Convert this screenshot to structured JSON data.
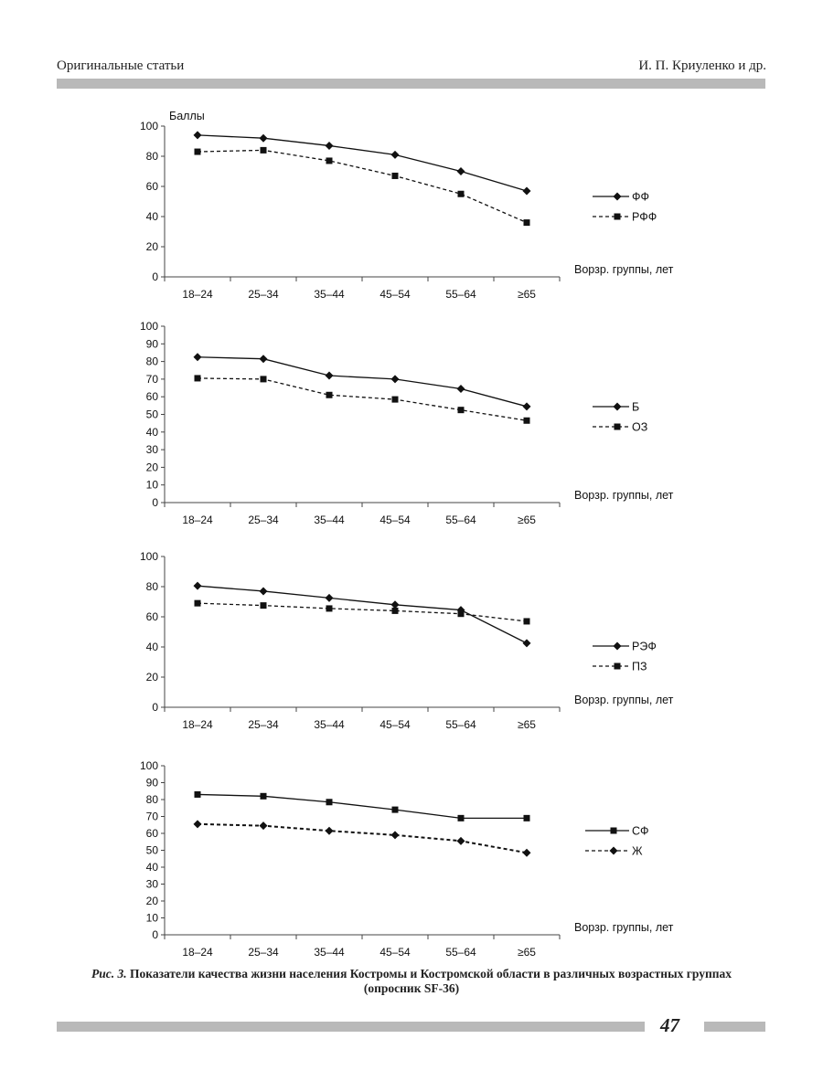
{
  "header": {
    "left": "Оригинальные статьи",
    "right": "И. П. Криуленко и др."
  },
  "chart_data": [
    {
      "type": "line",
      "categories": [
        "18–24",
        "25–34",
        "35–44",
        "45–54",
        "55–64",
        "≥65"
      ],
      "ylabel": "Баллы",
      "xlabel": "Ворзр. группы, лет",
      "ylim": [
        0,
        100
      ],
      "yticks": [
        0,
        20,
        40,
        60,
        80,
        100
      ],
      "legend_position": "right",
      "series": [
        {
          "name": "ФФ",
          "values": [
            94,
            92,
            87,
            81,
            70,
            57
          ],
          "marker": "diamond",
          "style": "solid"
        },
        {
          "name": "РФФ",
          "values": [
            83,
            84,
            77,
            67,
            55,
            36
          ],
          "marker": "square",
          "style": "dashed"
        }
      ]
    },
    {
      "type": "line",
      "categories": [
        "18–24",
        "25–34",
        "35–44",
        "45–54",
        "55–64",
        "≥65"
      ],
      "ylabel": "",
      "xlabel": "Ворзр. группы, лет",
      "ylim": [
        0,
        100
      ],
      "yticks": [
        0,
        10,
        20,
        30,
        40,
        50,
        60,
        70,
        80,
        90,
        100
      ],
      "legend_position": "right",
      "series": [
        {
          "name": "Б",
          "values": [
            82.5,
            81.5,
            72,
            70,
            64.5,
            54.5
          ],
          "marker": "diamond",
          "style": "solid"
        },
        {
          "name": "ОЗ",
          "values": [
            70.5,
            70,
            61,
            58.5,
            52.5,
            46.5
          ],
          "marker": "square",
          "style": "dashed"
        }
      ]
    },
    {
      "type": "line",
      "categories": [
        "18–24",
        "25–34",
        "35–44",
        "45–54",
        "55–64",
        "≥65"
      ],
      "ylabel": "",
      "xlabel": "Ворзр. группы, лет",
      "ylim": [
        0,
        100
      ],
      "yticks": [
        0,
        20,
        40,
        60,
        80,
        100
      ],
      "legend_position": "right",
      "series": [
        {
          "name": "РЭФ",
          "values": [
            80.5,
            77,
            72.5,
            68,
            64.5,
            42.5
          ],
          "marker": "diamond",
          "style": "solid"
        },
        {
          "name": "ПЗ",
          "values": [
            69,
            67.5,
            65.5,
            64,
            62,
            57
          ],
          "marker": "square",
          "style": "dashed"
        }
      ]
    },
    {
      "type": "line",
      "categories": [
        "18–24",
        "25–34",
        "35–44",
        "45–54",
        "55–64",
        "≥65"
      ],
      "ylabel": "",
      "xlabel": "Ворзр. группы, лет",
      "ylim": [
        0,
        100
      ],
      "yticks": [
        0,
        10,
        20,
        30,
        40,
        50,
        60,
        70,
        80,
        90,
        100
      ],
      "legend_position": "right",
      "series": [
        {
          "name": "СФ",
          "values": [
            83,
            82,
            78.5,
            74,
            69,
            69
          ],
          "marker": "square",
          "style": "solid"
        },
        {
          "name": "Ж",
          "values": [
            65.5,
            64.5,
            61.5,
            59,
            55.5,
            48.5
          ],
          "marker": "diamond",
          "style": "dashed"
        }
      ]
    }
  ],
  "caption": {
    "fig_label": "Рис. 3.",
    "text": " Показатели качества жизни населения Костромы и Костромской области в различных возрастных группах (опросник SF-36)"
  },
  "page_number": "47"
}
